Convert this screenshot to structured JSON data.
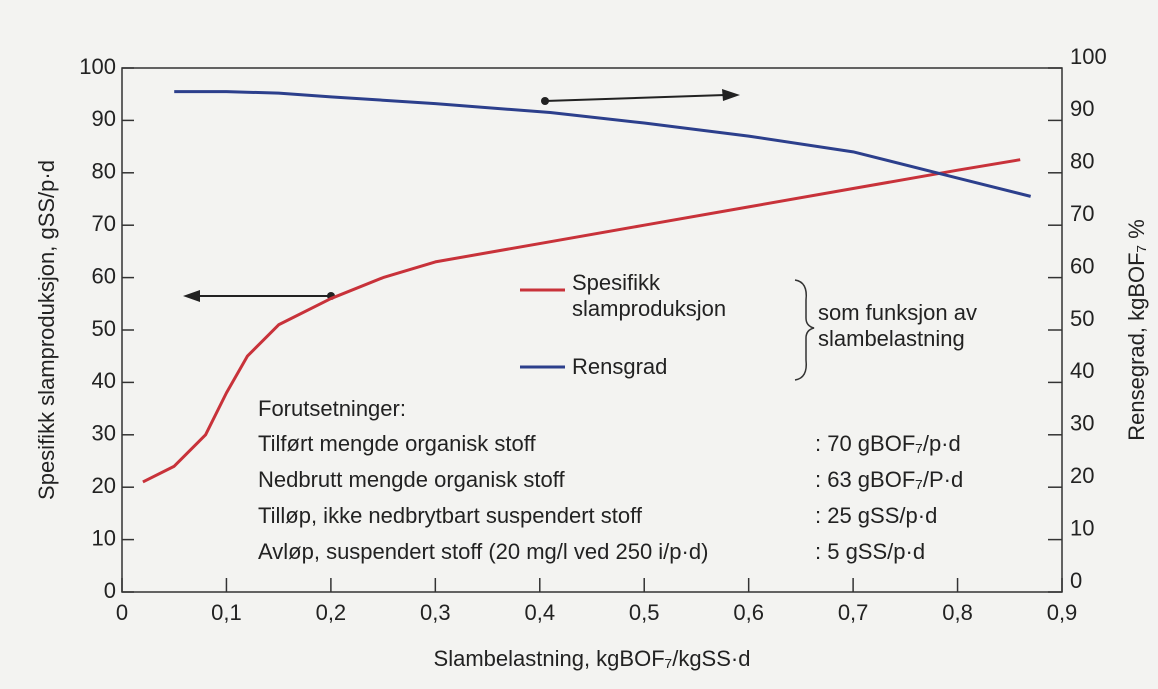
{
  "chart_data": {
    "type": "line",
    "x_label": "Slambelastning, kgBOF₇/kgSS·d",
    "y_label": "Spesifikk slamproduksjon, gSS/p·d",
    "y2_label": "Rensegrad, kgBOF₇ %",
    "xlim": [
      0,
      0.9
    ],
    "xticks": [
      0,
      {
        "value": 0.1,
        "label": "0,1"
      },
      {
        "value": 0.2,
        "label": "0,2"
      },
      {
        "value": 0.3,
        "label": "0,3"
      },
      {
        "value": 0.4,
        "label": "0,4"
      },
      {
        "value": 0.5,
        "label": "0,5"
      },
      {
        "value": 0.6,
        "label": "0,6"
      },
      {
        "value": 0.7,
        "label": "0,7"
      },
      {
        "value": 0.8,
        "label": "0,8"
      },
      {
        "value": 0.9,
        "label": "0,9"
      }
    ],
    "ylim": [
      0,
      100
    ],
    "yticks": [
      0,
      10,
      20,
      30,
      40,
      50,
      60,
      70,
      80,
      90,
      100
    ],
    "y2lim": [
      0,
      100
    ],
    "y2ticks": [
      0,
      10,
      20,
      30,
      40,
      50,
      60,
      70,
      80,
      90,
      100
    ],
    "series": [
      {
        "name": "Spesifikk slamproduksjon",
        "color": "#c8323a",
        "x": [
          0.02,
          0.05,
          0.08,
          0.1,
          0.12,
          0.15,
          0.2,
          0.25,
          0.3,
          0.4,
          0.5,
          0.6,
          0.7,
          0.8,
          0.86
        ],
        "values": [
          21,
          24,
          30,
          38,
          45,
          51,
          56,
          60,
          63,
          66.5,
          70,
          73.5,
          77,
          80.5,
          82.5
        ]
      },
      {
        "name": "Rensgrad",
        "color": "#2c3f8c",
        "axis": "y2",
        "x": [
          0.05,
          0.1,
          0.15,
          0.2,
          0.3,
          0.41,
          0.5,
          0.6,
          0.7,
          0.8,
          0.87
        ],
        "values": [
          95.5,
          95.5,
          95.2,
          94.5,
          93.2,
          91.5,
          89.5,
          87,
          84,
          79,
          75.5
        ]
      }
    ],
    "annotation": "som funksjon av slambelastning",
    "assumptions": {
      "title": "Forutsetninger:",
      "rows": [
        [
          "Tilført mengde organisk stoff",
          ": 70 gBOF₇/p·d"
        ],
        [
          "Nedbrutt mengde organisk stoff",
          ": 63 gBOF₇/P·d"
        ],
        [
          "Tilløp, ikke nedbrytbart suspendert stoff",
          ": 25 gSS/p·d"
        ],
        [
          "Avløp, suspendert stoff (20 mg/l ved 250 i/p·d)",
          ":  5 gSS/p·d"
        ]
      ]
    }
  }
}
